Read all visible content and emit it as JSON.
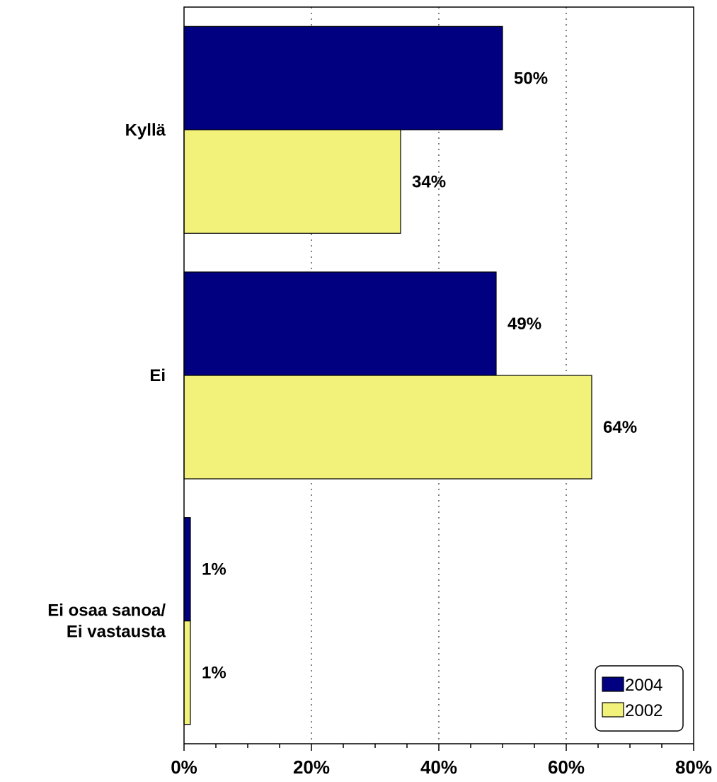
{
  "chart_data": {
    "type": "bar",
    "orientation": "horizontal",
    "categories": [
      [
        "Kyllä"
      ],
      [
        "Ei"
      ],
      [
        "Ei osaa sanoa/",
        "Ei vastausta"
      ]
    ],
    "series": [
      {
        "name": "2004",
        "values": [
          50,
          49,
          1
        ],
        "labels": [
          "50%",
          "49%",
          "1%"
        ],
        "color": "#000080"
      },
      {
        "name": "2002",
        "values": [
          34,
          64,
          1
        ],
        "labels": [
          "34%",
          "64%",
          "1%"
        ],
        "color": "#F2F27A"
      }
    ],
    "xlim": [
      0,
      80
    ],
    "xticks": [
      0,
      20,
      40,
      60,
      80
    ],
    "xtick_labels": [
      "0%",
      "20%",
      "40%",
      "60%",
      "80%"
    ],
    "grid": "vertical dotted at major ticks",
    "legend": "bottom-right"
  }
}
